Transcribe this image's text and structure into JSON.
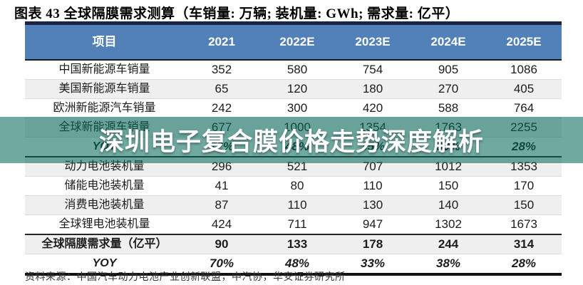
{
  "title": "图表 43 全球隔膜需求测算（车销量: 万辆; 装机量: GWh; 需求量: 亿平）",
  "watermark": "深圳电子复合膜价格走势深度解析",
  "source": "资料来源：中国汽车动力电池产业创新联盟，中汽协，华安证券研究所",
  "colors": {
    "header_bg": "#5280b8",
    "header_text": "#ffffff",
    "row_stripe": "#efefef",
    "top_bar": "#1b2440",
    "overlay_band": "rgba(2,104,88,0.57)",
    "watermark_text": "#ffffff"
  },
  "chart_data": {
    "type": "table",
    "title": "全球隔膜需求测算",
    "units": {
      "vehicle_sales": "万辆",
      "installed_capacity": "GWh",
      "demand": "亿平"
    },
    "columns": [
      "项目",
      "2021",
      "2022E",
      "2023E",
      "2024E",
      "2025E"
    ],
    "rows": [
      {
        "label": "中国新能源车销量",
        "values": [
          "352",
          "580",
          "754",
          "905",
          "1086"
        ],
        "emphasis": "",
        "section_start": false
      },
      {
        "label": "美国新能源车销量",
        "values": [
          "65",
          "120",
          "180",
          "270",
          "405"
        ],
        "emphasis": "",
        "section_start": false
      },
      {
        "label": "欧洲新能源汽车销量",
        "values": [
          "242",
          "300",
          "420",
          "588",
          "764"
        ],
        "emphasis": "",
        "section_start": false
      },
      {
        "label": "全球新能源车销量",
        "values": [
          "677",
          "1000",
          "1354",
          "1763",
          "2255"
        ],
        "emphasis": "",
        "section_start": false
      },
      {
        "label": "YOY",
        "values": [
          "72%",
          "48%",
          "35%",
          "30%",
          "28%"
        ],
        "emphasis": "yoy",
        "section_start": false
      },
      {
        "label": "动力电池装机量",
        "values": [
          "296",
          "521",
          "707",
          "1012",
          "1353"
        ],
        "emphasis": "",
        "section_start": true
      },
      {
        "label": "储能电池装机量",
        "values": [
          "41",
          "80",
          "110",
          "150",
          "170"
        ],
        "emphasis": "",
        "section_start": false
      },
      {
        "label": "消费电池装机量",
        "values": [
          "87",
          "110",
          "130",
          "140",
          "150"
        ],
        "emphasis": "",
        "section_start": false
      },
      {
        "label": "全球锂电池装机量",
        "values": [
          "424",
          "711",
          "947",
          "1302",
          "1673"
        ],
        "emphasis": "",
        "section_start": false
      },
      {
        "label": "全球隔膜需求量（亿平）",
        "values": [
          "90",
          "133",
          "178",
          "244",
          "314"
        ],
        "emphasis": "bold",
        "section_start": true
      },
      {
        "label": "YOY",
        "values": [
          "70%",
          "48%",
          "33%",
          "38%",
          "28%"
        ],
        "emphasis": "yoy",
        "section_start": false
      }
    ]
  }
}
